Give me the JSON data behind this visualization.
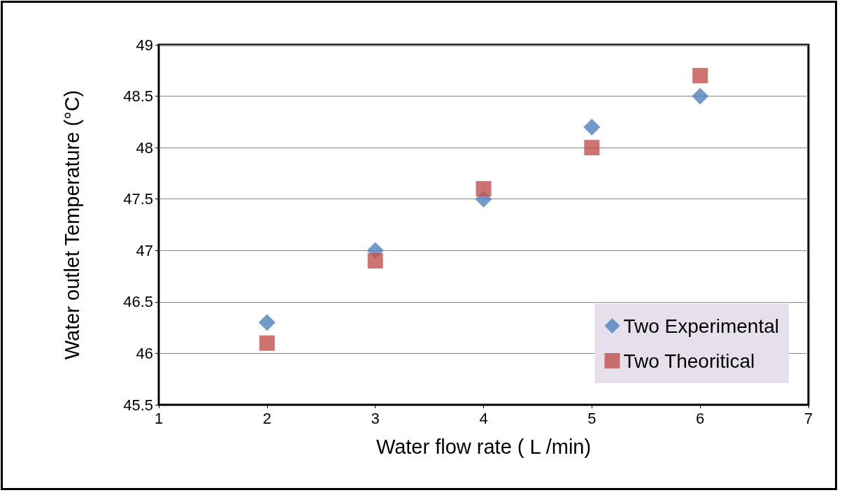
{
  "chart_data": {
    "type": "scatter",
    "xlabel": "Water flow rate ( L /min)",
    "ylabel": "Water outlet Temperature (°C)",
    "x": [
      2,
      3,
      4,
      5,
      6
    ],
    "series": [
      {
        "name": "Two Experimental",
        "color": "#4f81bd",
        "marker": "diamond",
        "values": [
          46.3,
          47.0,
          47.5,
          48.2,
          48.5
        ]
      },
      {
        "name": "Two Theoritical",
        "color": "#c0504d",
        "marker": "square",
        "values": [
          46.1,
          46.9,
          47.6,
          48.0,
          48.7
        ]
      }
    ],
    "xlim": [
      1,
      7
    ],
    "xticks": [
      1,
      2,
      3,
      4,
      5,
      6,
      7
    ],
    "ylim": [
      45.5,
      49
    ],
    "yticks": [
      45.5,
      46,
      46.5,
      47,
      47.5,
      48,
      48.5,
      49
    ],
    "grid": "y",
    "legend": "bottom right"
  }
}
